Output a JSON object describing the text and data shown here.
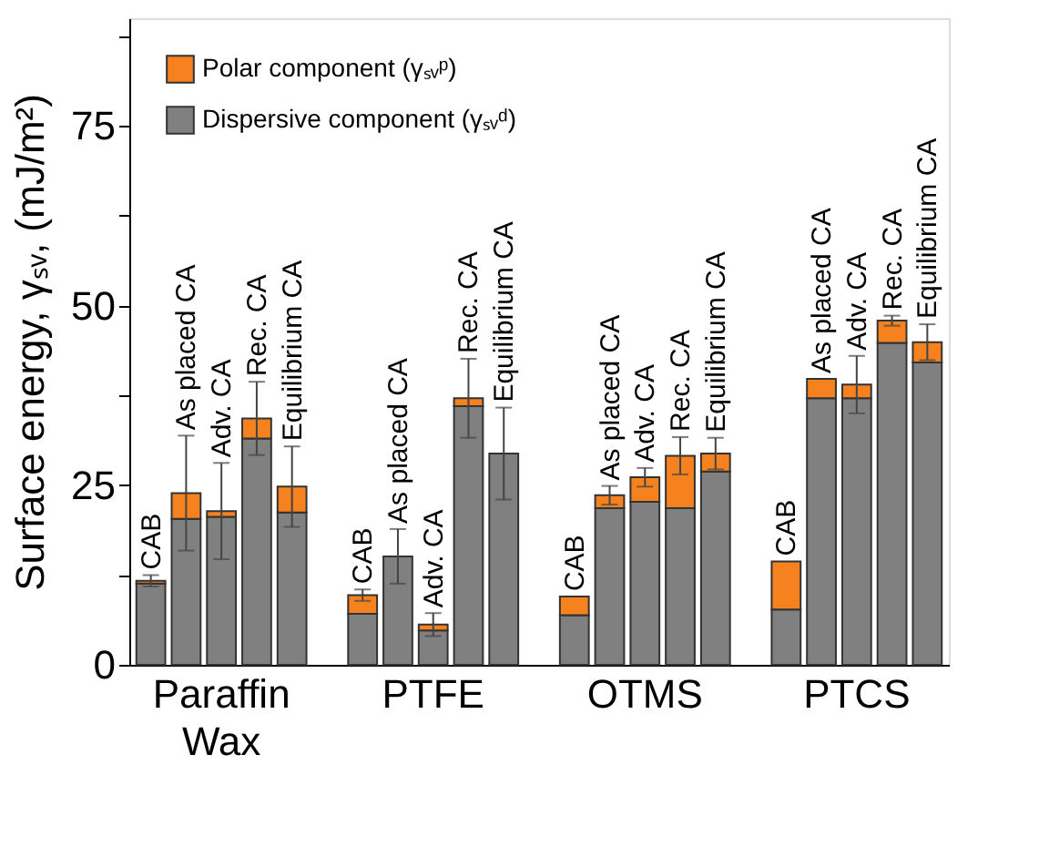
{
  "chart_data": {
    "type": "bar",
    "stacked": true,
    "ylabel": "Surface energy, γₛᵥ, (mJ/m²)",
    "categories": [
      null,
      null,
      "Paraffin Wax",
      null,
      null,
      null,
      null,
      null,
      "PTFE",
      null,
      null,
      null,
      null,
      null,
      "OTMS",
      null,
      null,
      null,
      null,
      null,
      "PTCS",
      null,
      null
    ],
    "series": [
      {
        "name": "Dispersive component (γₛᵥᵈ)",
        "color": "#808080",
        "values": [
          11.3,
          20.3,
          20.6,
          31.5,
          21.2,
          null,
          7.1,
          15.1,
          4.8,
          36.0,
          29.4,
          null,
          6.9,
          21.8,
          22.7,
          21.8,
          26.9,
          null,
          7.7,
          37.1,
          37.1,
          44.8,
          42.1
        ],
        "errors": [
          null,
          null,
          null,
          null,
          null,
          null,
          null,
          3.8,
          null,
          null,
          6.4,
          null,
          null,
          null,
          null,
          null,
          null,
          null,
          null,
          null,
          null,
          null,
          null
        ]
      },
      {
        "name": "Polar component (γₛᵥᵖ)",
        "color": "#f5821f",
        "values": [
          0.4,
          3.6,
          0.8,
          2.8,
          3.6,
          null,
          2.6,
          null,
          0.8,
          1.1,
          null,
          null,
          2.6,
          1.8,
          3.4,
          7.3,
          2.5,
          null,
          6.7,
          2.7,
          1.9,
          3.1,
          2.8
        ],
        "errors": [
          0.8,
          8,
          6.7,
          5.1,
          5.6,
          null,
          0.8,
          null,
          1.6,
          5.5,
          null,
          null,
          null,
          1.3,
          1.3,
          2.6,
          2.2,
          null,
          null,
          null,
          4,
          0.7,
          2.5
        ],
        "value_labels": [
          "CAB",
          "As placed CA",
          "Adv. CA",
          "Rec. CA",
          "Equilibrium CA",
          null,
          "CAB",
          "As placed CA",
          "Adv. CA",
          "Rec. CA",
          "Equilibrium CA",
          null,
          "CAB",
          "As placed CA",
          "Adv. CA",
          "Rec. CA",
          "Equilibrium CA",
          null,
          "CAB",
          "As placed CA",
          "Adv. CA",
          "Rec. CA",
          "Equilibrium CA"
        ]
      }
    ],
    "ylim": [
      0,
      90
    ],
    "yticks": [
      0,
      {
        "value": 12.5,
        "label": null
      },
      25,
      {
        "value": 37.5,
        "label": null
      },
      50,
      {
        "value": 62.5,
        "label": null
      },
      75,
      {
        "value": 87.5,
        "label": null
      }
    ],
    "grid": false,
    "legend": "top left"
  }
}
